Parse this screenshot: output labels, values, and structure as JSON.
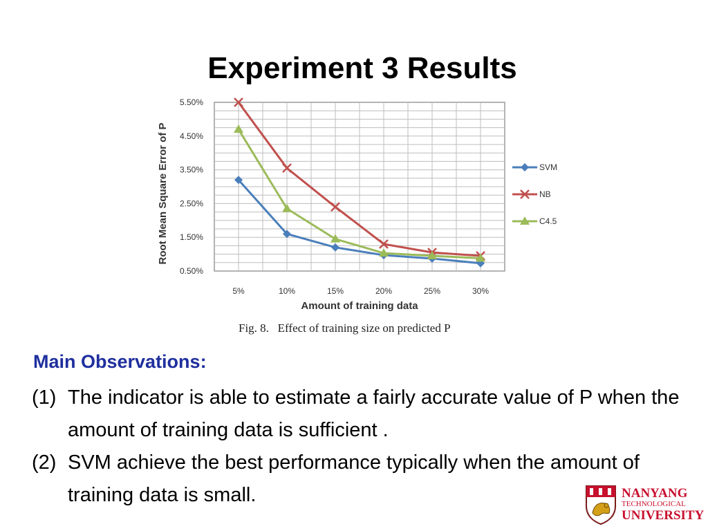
{
  "slide": {
    "title": "Experiment 3 Results",
    "caption": "Fig. 8.   Effect of training size on predicted P"
  },
  "observations": {
    "heading": "Main Observations:",
    "items": [
      {
        "num": "(1)",
        "text": "The indicator is able to estimate a fairly accurate value of P when the amount of training data is sufficient ."
      },
      {
        "num": "(2)",
        "text": "SVM achieve the best performance typically when the amount of training data is small."
      }
    ]
  },
  "logo": {
    "line1": "NANYANG",
    "line2": "TECHNOLOGICAL",
    "line3": "UNIVERSITY"
  },
  "colors": {
    "heading_blue": "#1f2f9e",
    "logo_red": "#c8102e"
  },
  "chart_data": {
    "type": "line",
    "categories": [
      "5%",
      "10%",
      "15%",
      "20%",
      "25%",
      "30%"
    ],
    "xlabel": "Amount of training data",
    "ylabel": "Root Mean Square Error of P",
    "yticks": [
      "0.50%",
      "1.50%",
      "2.50%",
      "3.50%",
      "4.50%",
      "5.50%"
    ],
    "ylim": [
      0.5,
      5.5
    ],
    "grid": true,
    "legend_position": "right",
    "series": [
      {
        "name": "SVM",
        "color": "#4a7ebb",
        "marker": "diamond",
        "values": [
          3.2,
          1.6,
          1.2,
          0.97,
          0.87,
          0.73
        ]
      },
      {
        "name": "NB",
        "color": "#c0504d",
        "marker": "x",
        "values": [
          5.5,
          3.55,
          2.4,
          1.3,
          1.05,
          0.95
        ]
      },
      {
        "name": "C4.5",
        "color": "#9bbb59",
        "marker": "triangle",
        "values": [
          4.7,
          2.35,
          1.45,
          1.03,
          0.95,
          0.88
        ]
      }
    ]
  }
}
